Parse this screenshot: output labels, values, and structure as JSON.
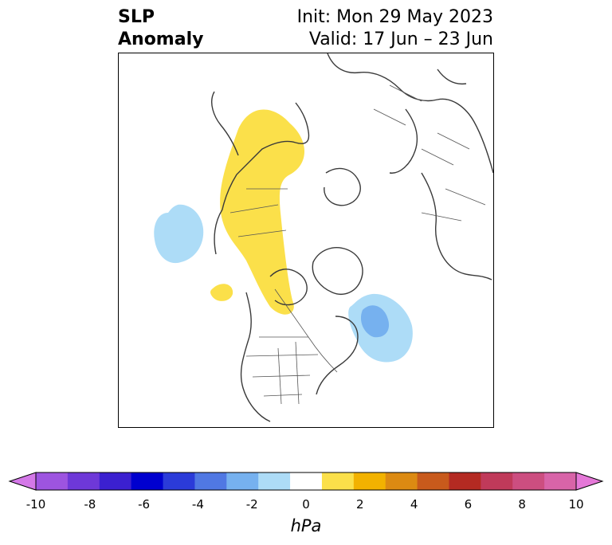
{
  "header": {
    "title_line1": "SLP",
    "title_line2": "Anomaly",
    "init": "Init: Mon 29 May 2023",
    "valid": "Valid: 17 Jun – 23 Jun"
  },
  "map": {
    "projection": "polar stereographic (Northern Hemisphere)",
    "features": [
      "coastlines",
      "country borders",
      "US state borders",
      "Canadian province borders"
    ],
    "anomaly_regions": [
      {
        "name": "positive-anomaly-western-canada",
        "level": "1 to 2 hPa",
        "color": "#fbe04a"
      },
      {
        "name": "positive-anomaly-north-pacific",
        "level": "1 to 2 hPa",
        "color": "#fbe04a"
      },
      {
        "name": "negative-anomaly-north-pacific",
        "level": "-1 to -2 hPa",
        "color": "#addcf7"
      },
      {
        "name": "negative-anomaly-newfoundland",
        "level": "-1 to -2 hPa",
        "color": "#addcf7"
      },
      {
        "name": "negative-anomaly-newfoundland-core",
        "level": "-2 to -3 hPa",
        "color": "#76b1ef"
      }
    ]
  },
  "colorbar": {
    "units": "hPa",
    "ticks": [
      "-10",
      "-8",
      "-6",
      "-4",
      "-2",
      "0",
      "2",
      "4",
      "6",
      "8",
      "10"
    ],
    "colors": [
      "#d478e8",
      "#9d54e0",
      "#6e38d8",
      "#3b20d0",
      "#0000cf",
      "#2b3bd9",
      "#5078e3",
      "#76b1ef",
      "#addcf7",
      "#ffffff",
      "#fbe04a",
      "#f2b200",
      "#dc8a12",
      "#c85a1c",
      "#b42a22",
      "#c03a5a",
      "#cc4e80",
      "#d864a8",
      "#e578d8"
    ]
  }
}
